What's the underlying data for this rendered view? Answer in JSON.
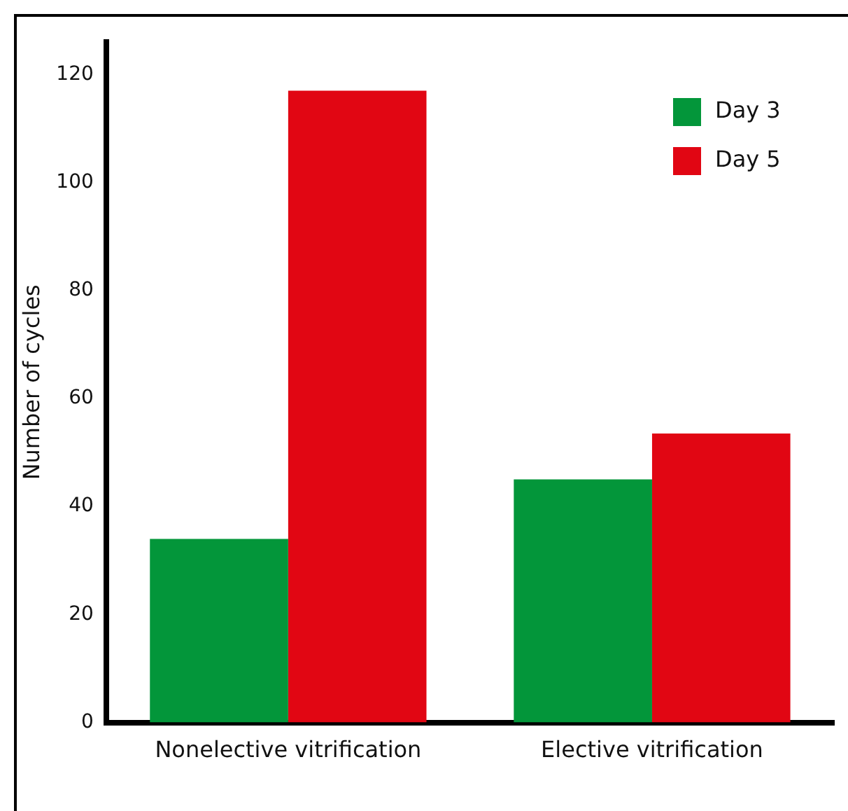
{
  "chart_data": {
    "type": "bar",
    "ylabel": "Number of cycles",
    "categories": [
      "Nonelective vitrification",
      "Elective vitrification"
    ],
    "series": [
      {
        "name": "Day 3",
        "color": "#03963a",
        "values": [
          34,
          45
        ]
      },
      {
        "name": "Day 5",
        "color": "#e10613",
        "values": [
          117,
          53.5
        ]
      }
    ],
    "ylim": [
      0,
      126
    ],
    "yticks": [
      0,
      20,
      40,
      60,
      80,
      100,
      120
    ],
    "grid": false,
    "legend": "top right"
  }
}
